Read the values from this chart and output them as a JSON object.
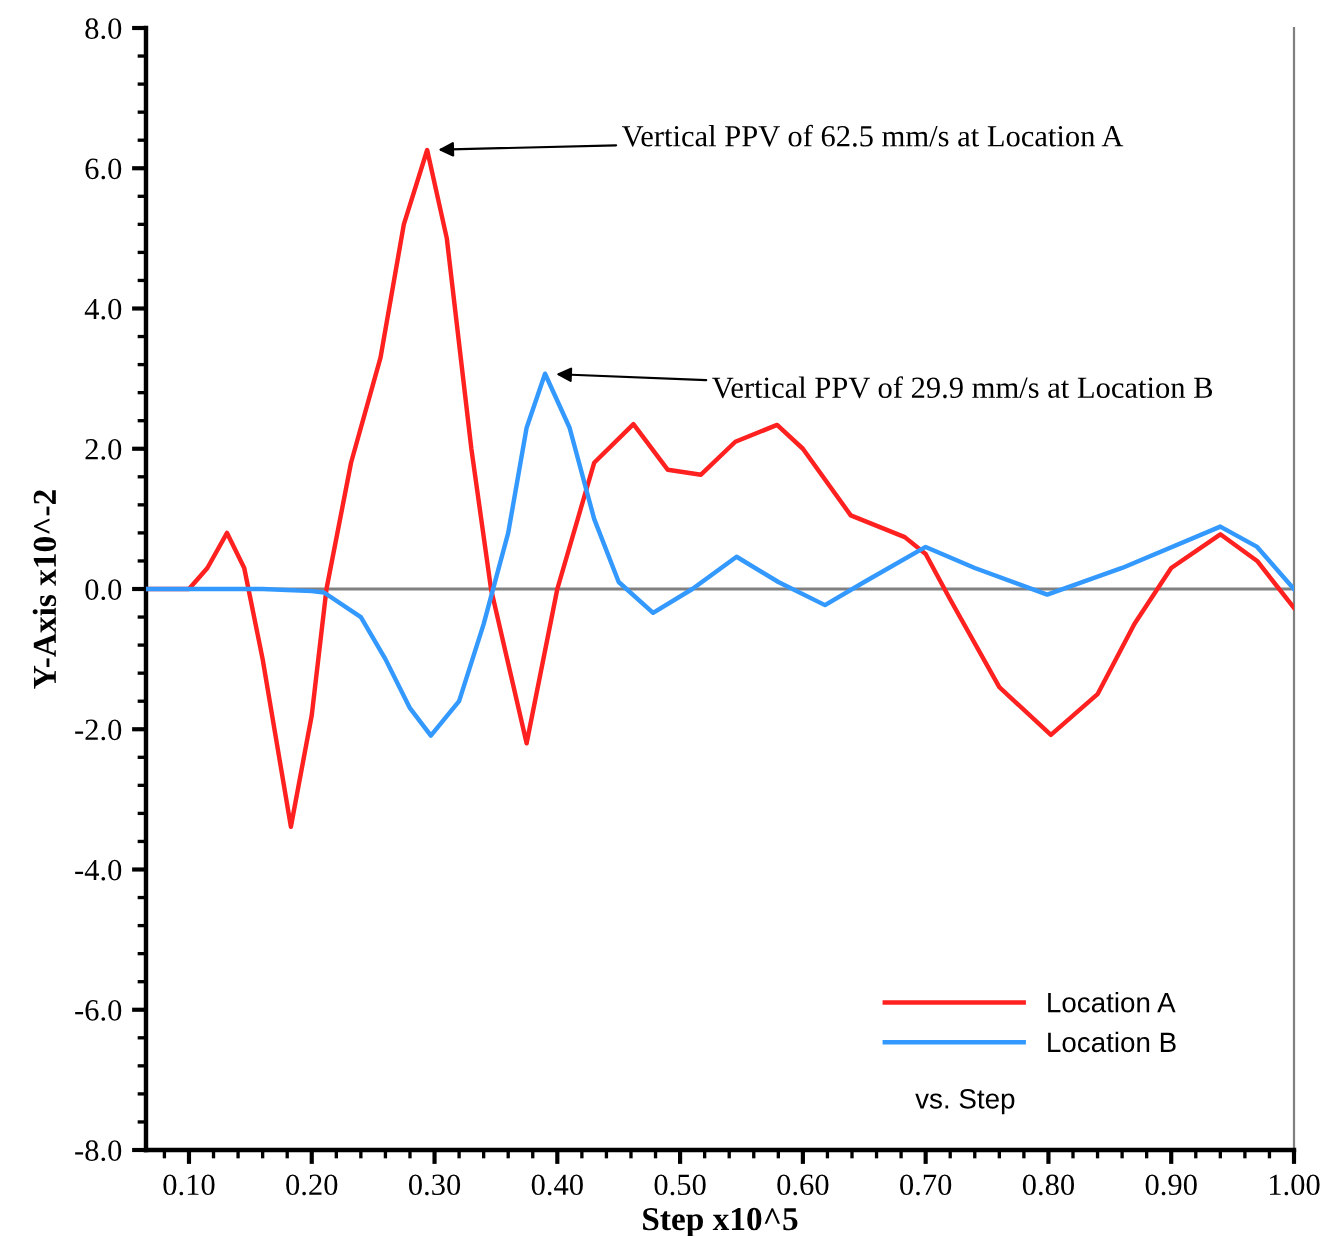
{
  "chart_data": {
    "type": "line",
    "xlabel": "Step x10^5",
    "ylabel": "Y-Axis x10^-2",
    "xlim": [
      0.065,
      1.0
    ],
    "ylim": [
      -8.0,
      8.0
    ],
    "xticks": [
      {
        "value": 0.08,
        "label": null
      },
      {
        "value": 0.1,
        "label": "0.10"
      },
      {
        "value": 0.12,
        "label": null
      },
      {
        "value": 0.14,
        "label": null
      },
      {
        "value": 0.16,
        "label": null
      },
      {
        "value": 0.18,
        "label": null
      },
      {
        "value": 0.2,
        "label": "0.20"
      },
      {
        "value": 0.22,
        "label": null
      },
      {
        "value": 0.24,
        "label": null
      },
      {
        "value": 0.26,
        "label": null
      },
      {
        "value": 0.28,
        "label": null
      },
      {
        "value": 0.3,
        "label": "0.30"
      },
      {
        "value": 0.32,
        "label": null
      },
      {
        "value": 0.34,
        "label": null
      },
      {
        "value": 0.36,
        "label": null
      },
      {
        "value": 0.38,
        "label": null
      },
      {
        "value": 0.4,
        "label": "0.40"
      },
      {
        "value": 0.42,
        "label": null
      },
      {
        "value": 0.44,
        "label": null
      },
      {
        "value": 0.46,
        "label": null
      },
      {
        "value": 0.48,
        "label": null
      },
      {
        "value": 0.5,
        "label": "0.50"
      },
      {
        "value": 0.52,
        "label": null
      },
      {
        "value": 0.54,
        "label": null
      },
      {
        "value": 0.56,
        "label": null
      },
      {
        "value": 0.58,
        "label": null
      },
      {
        "value": 0.6,
        "label": "0.60"
      },
      {
        "value": 0.62,
        "label": null
      },
      {
        "value": 0.64,
        "label": null
      },
      {
        "value": 0.66,
        "label": null
      },
      {
        "value": 0.68,
        "label": null
      },
      {
        "value": 0.7,
        "label": "0.70"
      },
      {
        "value": 0.72,
        "label": null
      },
      {
        "value": 0.74,
        "label": null
      },
      {
        "value": 0.76,
        "label": null
      },
      {
        "value": 0.78,
        "label": null
      },
      {
        "value": 0.8,
        "label": "0.80"
      },
      {
        "value": 0.82,
        "label": null
      },
      {
        "value": 0.84,
        "label": null
      },
      {
        "value": 0.86,
        "label": null
      },
      {
        "value": 0.88,
        "label": null
      },
      {
        "value": 0.9,
        "label": "0.90"
      },
      {
        "value": 0.92,
        "label": null
      },
      {
        "value": 0.94,
        "label": null
      },
      {
        "value": 0.96,
        "label": null
      },
      {
        "value": 0.98,
        "label": null
      },
      {
        "value": 1.0,
        "label": "1.00"
      }
    ],
    "yticks": [
      {
        "value": -8.0,
        "label": "-8.0"
      },
      {
        "value": -7.6,
        "label": null
      },
      {
        "value": -7.2,
        "label": null
      },
      {
        "value": -6.8,
        "label": null
      },
      {
        "value": -6.4,
        "label": null
      },
      {
        "value": -6.0,
        "label": "-6.0"
      },
      {
        "value": -5.6,
        "label": null
      },
      {
        "value": -5.2,
        "label": null
      },
      {
        "value": -4.8,
        "label": null
      },
      {
        "value": -4.4,
        "label": null
      },
      {
        "value": -4.0,
        "label": "-4.0"
      },
      {
        "value": -3.6,
        "label": null
      },
      {
        "value": -3.2,
        "label": null
      },
      {
        "value": -2.8,
        "label": null
      },
      {
        "value": -2.4,
        "label": null
      },
      {
        "value": -2.0,
        "label": "-2.0"
      },
      {
        "value": -1.6,
        "label": null
      },
      {
        "value": -1.2,
        "label": null
      },
      {
        "value": -0.8,
        "label": null
      },
      {
        "value": -0.4,
        "label": null
      },
      {
        "value": 0.0,
        "label": "0.0"
      },
      {
        "value": 0.4,
        "label": null
      },
      {
        "value": 0.8,
        "label": null
      },
      {
        "value": 1.2,
        "label": null
      },
      {
        "value": 1.6,
        "label": null
      },
      {
        "value": 2.0,
        "label": "2.0"
      },
      {
        "value": 2.4,
        "label": null
      },
      {
        "value": 2.8,
        "label": null
      },
      {
        "value": 3.2,
        "label": null
      },
      {
        "value": 3.6,
        "label": null
      },
      {
        "value": 4.0,
        "label": "4.0"
      },
      {
        "value": 4.4,
        "label": null
      },
      {
        "value": 4.8,
        "label": null
      },
      {
        "value": 5.2,
        "label": null
      },
      {
        "value": 5.6,
        "label": null
      },
      {
        "value": 6.0,
        "label": "6.0"
      },
      {
        "value": 6.4,
        "label": null
      },
      {
        "value": 6.8,
        "label": null
      },
      {
        "value": 7.2,
        "label": null
      },
      {
        "value": 7.6,
        "label": null
      },
      {
        "value": 8.0,
        "label": "8.0"
      }
    ],
    "grid": false,
    "legend": "bottom right",
    "marker": "none",
    "line_style": "solid",
    "ref_lines": [
      {
        "axis": "y",
        "value": 0.0,
        "label": null,
        "color": "#808080"
      }
    ],
    "series": [
      {
        "name": "Location A",
        "color": "#ff2020",
        "x": [
          0.065,
          0.1,
          0.115,
          0.131,
          0.145,
          0.16,
          0.183,
          0.2,
          0.212,
          0.232,
          0.256,
          0.275,
          0.294,
          0.31,
          0.33,
          0.346,
          0.375,
          0.4,
          0.43,
          0.462,
          0.49,
          0.517,
          0.545,
          0.579,
          0.6,
          0.639,
          0.683,
          0.7,
          0.72,
          0.76,
          0.802,
          0.84,
          0.87,
          0.9,
          0.94,
          0.97,
          1.0
        ],
        "values": [
          0.0,
          0.0,
          0.3,
          0.8,
          0.3,
          -1.0,
          -3.39,
          -1.8,
          0.0,
          1.8,
          3.3,
          5.2,
          6.26,
          5.0,
          2.0,
          0.0,
          -2.2,
          0.0,
          1.8,
          2.35,
          1.7,
          1.63,
          2.1,
          2.34,
          2.0,
          1.05,
          0.74,
          0.5,
          -0.15,
          -1.4,
          -2.08,
          -1.5,
          -0.5,
          0.3,
          0.78,
          0.4,
          -0.27
        ]
      },
      {
        "name": "Location B",
        "color": "#3399ff",
        "x": [
          0.065,
          0.16,
          0.2,
          0.21,
          0.24,
          0.26,
          0.28,
          0.297,
          0.32,
          0.34,
          0.36,
          0.375,
          0.39,
          0.41,
          0.43,
          0.45,
          0.478,
          0.51,
          0.546,
          0.58,
          0.618,
          0.65,
          0.7,
          0.74,
          0.799,
          0.86,
          0.94,
          0.97,
          1.0
        ],
        "values": [
          0.0,
          0.0,
          -0.03,
          -0.05,
          -0.4,
          -1.0,
          -1.7,
          -2.09,
          -1.6,
          -0.5,
          0.8,
          2.3,
          3.07,
          2.3,
          1.0,
          0.1,
          -0.34,
          0.0,
          0.46,
          0.1,
          -0.23,
          0.1,
          0.6,
          0.3,
          -0.08,
          0.3,
          0.89,
          0.6,
          0.0
        ]
      }
    ],
    "annotations": [
      {
        "text": "Vertical PPV of 62.5 mm/s at Location A",
        "x": 0.294,
        "y": 6.26
      },
      {
        "text": "Vertical PPV of 29.9 mm/s at Location B",
        "x": 0.39,
        "y": 3.07
      },
      "vs. Step"
    ]
  }
}
